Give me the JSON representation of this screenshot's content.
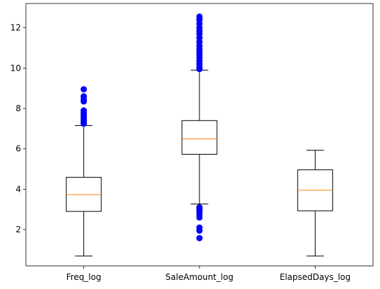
{
  "chart_data": {
    "type": "box",
    "title": "",
    "xlabel": "",
    "ylabel": "",
    "ylim": [
      0.2,
      13.2
    ],
    "yticks": [
      2,
      4,
      6,
      8,
      10,
      12
    ],
    "grid": false,
    "box_color": "#000000",
    "median_color": "#ff7f0e",
    "flier_color": "#0000ff",
    "categories": [
      "Freq_log",
      "SaleAmount_log",
      "ElapsedDays_log"
    ],
    "boxes": [
      {
        "label": "Freq_log",
        "whisker_low": 0.69,
        "q1": 2.9,
        "median": 3.73,
        "q3": 4.59,
        "whisker_high": 7.15,
        "outliers": [
          7.25,
          7.3,
          7.4,
          7.5,
          7.6,
          7.7,
          7.8,
          7.9,
          8.35,
          8.45,
          8.6,
          8.95
        ]
      },
      {
        "label": "SaleAmount_log",
        "whisker_low": 3.27,
        "q1": 5.73,
        "median": 6.49,
        "q3": 7.4,
        "whisker_high": 9.9,
        "outliers": [
          1.58,
          1.95,
          2.1,
          2.6,
          2.75,
          2.9,
          3.0,
          3.1,
          9.95,
          10.05,
          10.2,
          10.35,
          10.5,
          10.65,
          10.8,
          10.95,
          11.1,
          11.3,
          11.5,
          11.7,
          11.85,
          12.0,
          12.2,
          12.4,
          12.55
        ]
      },
      {
        "label": "ElapsedDays_log",
        "whisker_low": 0.69,
        "q1": 2.93,
        "median": 3.95,
        "q3": 4.96,
        "whisker_high": 5.93,
        "outliers": []
      }
    ]
  }
}
